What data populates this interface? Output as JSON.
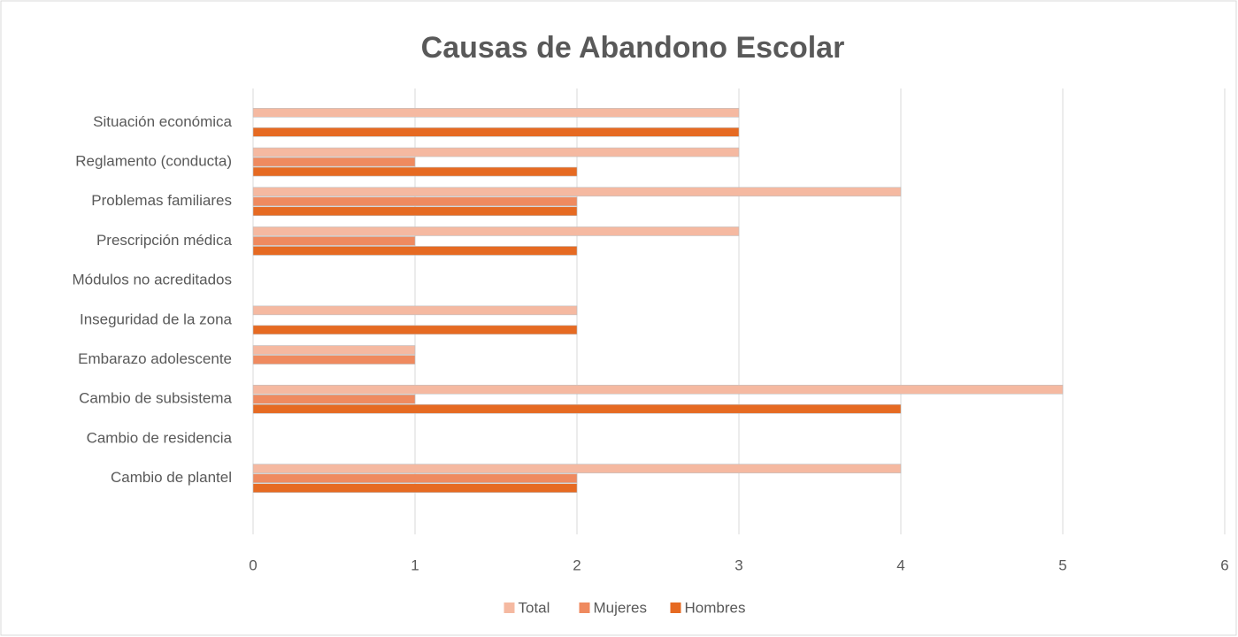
{
  "chart_data": {
    "type": "hbar",
    "title": "Causas de Abandono Escolar",
    "categories": [
      "Situación económica",
      "Reglamento (conducta)",
      "Problemas familiares",
      "Prescripción médica",
      "Módulos no acreditados",
      "Inseguridad de la zona",
      "Embarazo adolescente",
      "Cambio de subsistema",
      "Cambio de residencia",
      "Cambio de plantel"
    ],
    "series": [
      {
        "name": "Total",
        "color": "#f5b9a1",
        "values": [
          3,
          3,
          4,
          3,
          0,
          2,
          1,
          5,
          0,
          4
        ]
      },
      {
        "name": "Mujeres",
        "color": "#ef8a5f",
        "values": [
          0,
          1,
          2,
          1,
          0,
          0,
          1,
          1,
          0,
          2
        ]
      },
      {
        "name": "Hombres",
        "color": "#e66a22",
        "values": [
          3,
          2,
          2,
          2,
          0,
          2,
          0,
          4,
          0,
          2
        ]
      }
    ],
    "xlim": [
      0,
      6
    ],
    "xticks": [
      0,
      1,
      2,
      3,
      4,
      5,
      6
    ],
    "grid": true,
    "legend": "bottom"
  }
}
